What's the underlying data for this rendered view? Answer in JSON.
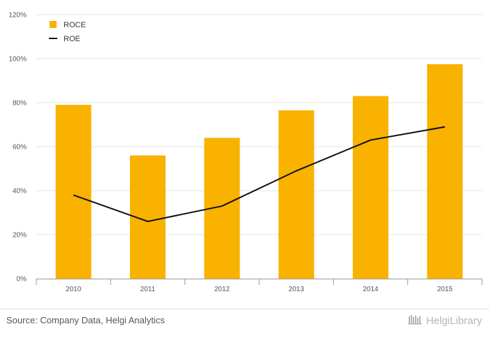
{
  "chart_data": {
    "type": "bar",
    "categories": [
      "2010",
      "2011",
      "2012",
      "2013",
      "2014",
      "2015"
    ],
    "series": [
      {
        "name": "ROCE",
        "kind": "bar",
        "color": "#f9b200",
        "values": [
          79,
          56,
          64,
          76.5,
          83,
          97.5
        ]
      },
      {
        "name": "ROE",
        "kind": "line",
        "color": "#111111",
        "values": [
          38,
          26,
          33,
          49,
          63,
          69
        ]
      }
    ],
    "ylim": [
      0,
      120
    ],
    "yticks": [
      "0%",
      "20%",
      "40%",
      "60%",
      "80%",
      "100%",
      "120%"
    ],
    "ytick_values": [
      0,
      20,
      40,
      60,
      80,
      100,
      120
    ],
    "grid": true,
    "legend_position": "top-left",
    "title": "",
    "xlabel": "",
    "ylabel": ""
  },
  "footer": {
    "source": "Source: Company Data, Helgi Analytics",
    "brand": "HelgiLibrary"
  }
}
